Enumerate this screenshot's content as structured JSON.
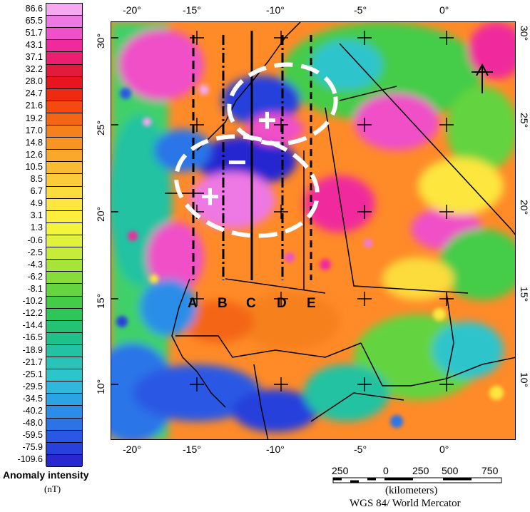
{
  "legend": {
    "values": [
      "86.6",
      "65.5",
      "51.7",
      "43.1",
      "37.1",
      "32.2",
      "28.0",
      "24.7",
      "21.6",
      "19.2",
      "17.0",
      "14.8",
      "12.6",
      "10.5",
      "8.5",
      "6.7",
      "4.9",
      "3.1",
      "1.3",
      "-0.6",
      "-2.5",
      "-4.3",
      "-6.2",
      "-8.1",
      "-10.2",
      "-12.2",
      "-14.4",
      "-16.5",
      "-18.9",
      "-21.7",
      "-25.1",
      "-29.5",
      "-34.5",
      "-40.2",
      "-48.0",
      "-59.5",
      "-75.9",
      "-109.6"
    ],
    "colors": [
      "#f7a8f0",
      "#ee78e4",
      "#f050c8",
      "#f02a9c",
      "#ec1e72",
      "#e31a3c",
      "#e8141e",
      "#ee2a10",
      "#f24a10",
      "#f46614",
      "#f6801c",
      "#f89424",
      "#f9a82c",
      "#fabb34",
      "#fbcb3a",
      "#fcdb3c",
      "#fde63e",
      "#fdef3c",
      "#f4f43a",
      "#e0f23a",
      "#c4ec38",
      "#a6e438",
      "#86dc3a",
      "#64d440",
      "#44cc48",
      "#2ec65a",
      "#24c272",
      "#20c08a",
      "#22c2a2",
      "#28c4ba",
      "#2ec4cc",
      "#30b8dc",
      "#2ca4e4",
      "#2a8ee8",
      "#2a74e8",
      "#2a58e4",
      "#2840dc",
      "#2828d0"
    ],
    "title": "Anomaly intensity",
    "unit": "(nT)"
  },
  "axes": {
    "top": [
      "-20°",
      "-15°",
      "-10°",
      "-5°",
      "0°"
    ],
    "bottom": [
      "-20°",
      "-15°",
      "-10°",
      "-5°",
      "0°"
    ],
    "left": [
      "30°",
      "25°",
      "20°",
      "15°",
      "10°"
    ],
    "right": [
      "30°",
      "25°",
      "20°",
      "15°",
      "10°"
    ]
  },
  "profiles": [
    "A",
    "B",
    "C",
    "D",
    "E"
  ],
  "anomaly_signs": {
    "plus": "+",
    "minus": "−"
  },
  "scale": {
    "ticks": [
      "250",
      "0",
      "250",
      "500",
      "750"
    ],
    "units": "(kilometers)",
    "projection": "WGS 84/ World Mercator"
  }
}
